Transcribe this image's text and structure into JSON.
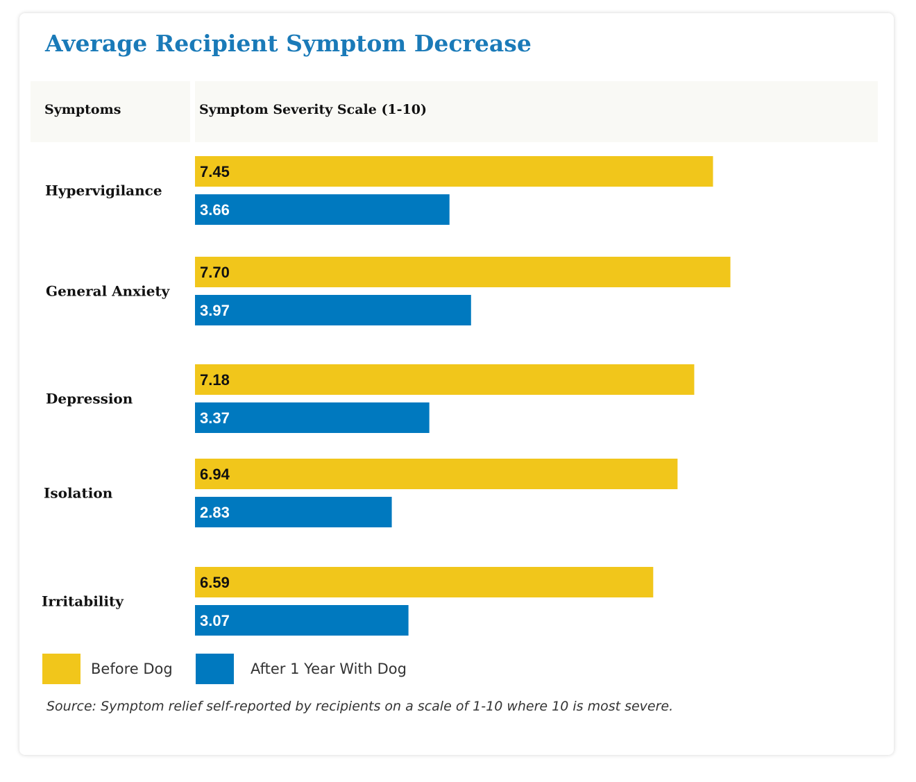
{
  "chart_data": {
    "type": "bar",
    "orientation": "horizontal",
    "title": "Average Recipient Symptom Decrease",
    "category_header": "Symptoms",
    "value_header": "Symptom Severity Scale (1-10)",
    "categories": [
      "Hypervigilance",
      "General Anxiety",
      "Depression",
      "Isolation",
      "Irritability"
    ],
    "series": [
      {
        "name": "Before Dog",
        "color": "#f1c61b",
        "label_color": "#111111",
        "values": [
          7.45,
          7.7,
          7.18,
          6.94,
          6.59
        ],
        "labels": [
          "7.45",
          "7.70",
          "7.18",
          "6.94",
          "6.59"
        ]
      },
      {
        "name": "After 1 Year With Dog",
        "color": "#0079bf",
        "label_color": "#ffffff",
        "values": [
          3.66,
          3.97,
          3.37,
          2.83,
          3.07
        ],
        "labels": [
          "3.66",
          "3.97",
          "3.37",
          "2.83",
          "3.07"
        ]
      }
    ],
    "xlim": [
      0,
      10
    ],
    "grid": false,
    "legend_position": "bottom-left",
    "source": "Source: Symptom relief self-reported by recipients on a scale of 1-10 where 10 is most severe."
  }
}
